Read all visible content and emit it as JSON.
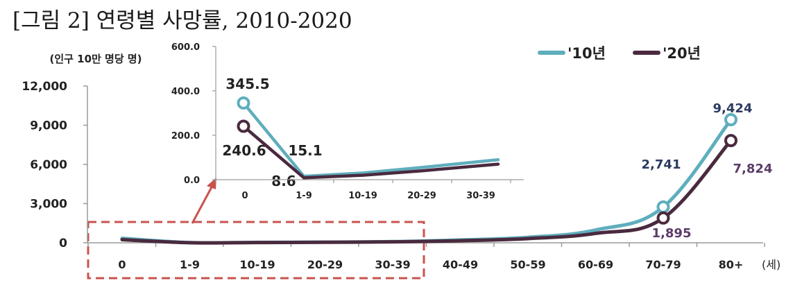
{
  "title": "[그림 2] 연령별 사망률, 2010-2020",
  "colors": {
    "series_2010": "#5faebd",
    "series_2020": "#4a2a3e",
    "axis": "#9a9a9a",
    "highlight_box": "#c9534d",
    "label_2010": "#2c3a60",
    "label_2020": "#5b3c68"
  },
  "chart_data": [
    {
      "type": "line",
      "ylabel": "(인구 10만 명당 명)",
      "xunit": "(세)",
      "categories": [
        "0",
        "1-9",
        "10-19",
        "20-29",
        "30-39",
        "40-49",
        "50-59",
        "60-69",
        "70-79",
        "80+"
      ],
      "ylim": [
        0,
        12000
      ],
      "yticks": [
        "0",
        "3,000",
        "6,000",
        "9,000",
        "12,000"
      ],
      "series": [
        {
          "name": "'10년",
          "values": [
            345.5,
            15.1,
            30,
            55,
            90,
            220,
            420,
            980,
            2741,
            9424
          ]
        },
        {
          "name": "'20년",
          "values": [
            240.6,
            8.6,
            20,
            40,
            70,
            160,
            320,
            720,
            1895,
            7824
          ]
        }
      ],
      "annotations": [
        "9,424",
        "2,741",
        "7,824",
        "1,895"
      ],
      "legend": "top-right",
      "grid": false
    },
    {
      "type": "line",
      "categories": [
        "0",
        "1-9",
        "10-19",
        "20-29",
        "30-39"
      ],
      "ylim": [
        0,
        600
      ],
      "yticks": [
        "0.0",
        "200.0",
        "400.0",
        "600.0"
      ],
      "series": [
        {
          "values": [
            345.5,
            15.1,
            30,
            55,
            90
          ]
        },
        {
          "values": [
            240.6,
            8.6,
            20,
            40,
            70
          ]
        }
      ],
      "annotations": [
        "345.5",
        "240.6",
        "15.1",
        "8.6"
      ],
      "grid": false
    }
  ]
}
